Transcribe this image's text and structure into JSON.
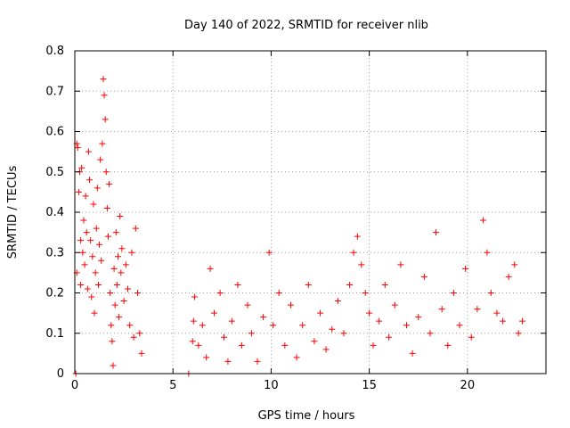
{
  "chart_data": {
    "type": "scatter",
    "title": "Day 140 of 2022, SRMTID for receiver nlib",
    "xlabel": "GPS time / hours",
    "ylabel": "SRMTID / TECUs",
    "xlim": [
      0,
      24
    ],
    "ylim": [
      0,
      0.8
    ],
    "x_ticks": [
      0,
      5,
      10,
      15,
      20
    ],
    "x_tick_labels": [
      "0",
      "5",
      "10",
      "15",
      "20"
    ],
    "y_ticks": [
      0,
      0.1,
      0.2,
      0.3,
      0.4,
      0.5,
      0.6,
      0.7,
      0.8
    ],
    "y_tick_labels": [
      "0",
      "0.1",
      "0.2",
      "0.3",
      "0.4",
      "0.5",
      "0.6",
      "0.7",
      "0.8"
    ],
    "grid": true,
    "marker": "+",
    "color": "#ff0000",
    "series": [
      {
        "name": "SRMTID",
        "points": [
          [
            0.05,
            0.0
          ],
          [
            0.1,
            0.25
          ],
          [
            0.1,
            0.57
          ],
          [
            0.15,
            0.56
          ],
          [
            0.2,
            0.45
          ],
          [
            0.25,
            0.5
          ],
          [
            0.3,
            0.22
          ],
          [
            0.3,
            0.33
          ],
          [
            0.35,
            0.51
          ],
          [
            0.4,
            0.3
          ],
          [
            0.45,
            0.38
          ],
          [
            0.5,
            0.27
          ],
          [
            0.55,
            0.44
          ],
          [
            0.6,
            0.35
          ],
          [
            0.65,
            0.21
          ],
          [
            0.7,
            0.55
          ],
          [
            0.75,
            0.48
          ],
          [
            0.8,
            0.33
          ],
          [
            0.85,
            0.19
          ],
          [
            0.9,
            0.29
          ],
          [
            0.95,
            0.42
          ],
          [
            1.0,
            0.15
          ],
          [
            1.05,
            0.25
          ],
          [
            1.1,
            0.36
          ],
          [
            1.15,
            0.46
          ],
          [
            1.2,
            0.22
          ],
          [
            1.25,
            0.32
          ],
          [
            1.3,
            0.53
          ],
          [
            1.35,
            0.28
          ],
          [
            1.4,
            0.57
          ],
          [
            1.45,
            0.73
          ],
          [
            1.5,
            0.69
          ],
          [
            1.55,
            0.63
          ],
          [
            1.6,
            0.5
          ],
          [
            1.65,
            0.41
          ],
          [
            1.7,
            0.34
          ],
          [
            1.75,
            0.47
          ],
          [
            1.8,
            0.2
          ],
          [
            1.85,
            0.12
          ],
          [
            1.9,
            0.08
          ],
          [
            1.95,
            0.02
          ],
          [
            2.0,
            0.26
          ],
          [
            2.05,
            0.17
          ],
          [
            2.1,
            0.35
          ],
          [
            2.15,
            0.22
          ],
          [
            2.2,
            0.29
          ],
          [
            2.25,
            0.14
          ],
          [
            2.3,
            0.39
          ],
          [
            2.35,
            0.25
          ],
          [
            2.4,
            0.31
          ],
          [
            2.5,
            0.18
          ],
          [
            2.6,
            0.27
          ],
          [
            2.7,
            0.21
          ],
          [
            2.8,
            0.12
          ],
          [
            2.9,
            0.3
          ],
          [
            3.0,
            0.09
          ],
          [
            3.1,
            0.36
          ],
          [
            3.2,
            0.2
          ],
          [
            3.3,
            0.1
          ],
          [
            3.4,
            0.05
          ],
          [
            5.8,
            0.0
          ],
          [
            6.0,
            0.08
          ],
          [
            6.05,
            0.13
          ],
          [
            6.1,
            0.19
          ],
          [
            6.3,
            0.07
          ],
          [
            6.5,
            0.12
          ],
          [
            6.7,
            0.04
          ],
          [
            6.9,
            0.26
          ],
          [
            7.1,
            0.15
          ],
          [
            7.4,
            0.2
          ],
          [
            7.6,
            0.09
          ],
          [
            7.8,
            0.03
          ],
          [
            8.0,
            0.13
          ],
          [
            8.3,
            0.22
          ],
          [
            8.5,
            0.07
          ],
          [
            8.8,
            0.17
          ],
          [
            9.0,
            0.1
          ],
          [
            9.3,
            0.03
          ],
          [
            9.6,
            0.14
          ],
          [
            9.9,
            0.3
          ],
          [
            10.1,
            0.12
          ],
          [
            10.4,
            0.2
          ],
          [
            10.7,
            0.07
          ],
          [
            11.0,
            0.17
          ],
          [
            11.3,
            0.04
          ],
          [
            11.6,
            0.12
          ],
          [
            11.9,
            0.22
          ],
          [
            12.2,
            0.08
          ],
          [
            12.5,
            0.15
          ],
          [
            12.8,
            0.06
          ],
          [
            13.1,
            0.11
          ],
          [
            13.4,
            0.18
          ],
          [
            13.7,
            0.1
          ],
          [
            14.0,
            0.22
          ],
          [
            14.2,
            0.3
          ],
          [
            14.4,
            0.34
          ],
          [
            14.6,
            0.27
          ],
          [
            14.8,
            0.2
          ],
          [
            15.0,
            0.15
          ],
          [
            15.2,
            0.07
          ],
          [
            15.5,
            0.13
          ],
          [
            15.8,
            0.22
          ],
          [
            16.0,
            0.09
          ],
          [
            16.3,
            0.17
          ],
          [
            16.6,
            0.27
          ],
          [
            16.9,
            0.12
          ],
          [
            17.2,
            0.05
          ],
          [
            17.5,
            0.14
          ],
          [
            17.8,
            0.24
          ],
          [
            18.1,
            0.1
          ],
          [
            18.4,
            0.35
          ],
          [
            18.7,
            0.16
          ],
          [
            19.0,
            0.07
          ],
          [
            19.3,
            0.2
          ],
          [
            19.6,
            0.12
          ],
          [
            19.9,
            0.26
          ],
          [
            20.2,
            0.09
          ],
          [
            20.5,
            0.16
          ],
          [
            20.8,
            0.38
          ],
          [
            21.0,
            0.3
          ],
          [
            21.2,
            0.2
          ],
          [
            21.5,
            0.15
          ],
          [
            21.8,
            0.13
          ],
          [
            22.1,
            0.24
          ],
          [
            22.4,
            0.27
          ],
          [
            22.6,
            0.1
          ],
          [
            22.8,
            0.13
          ]
        ]
      }
    ]
  }
}
